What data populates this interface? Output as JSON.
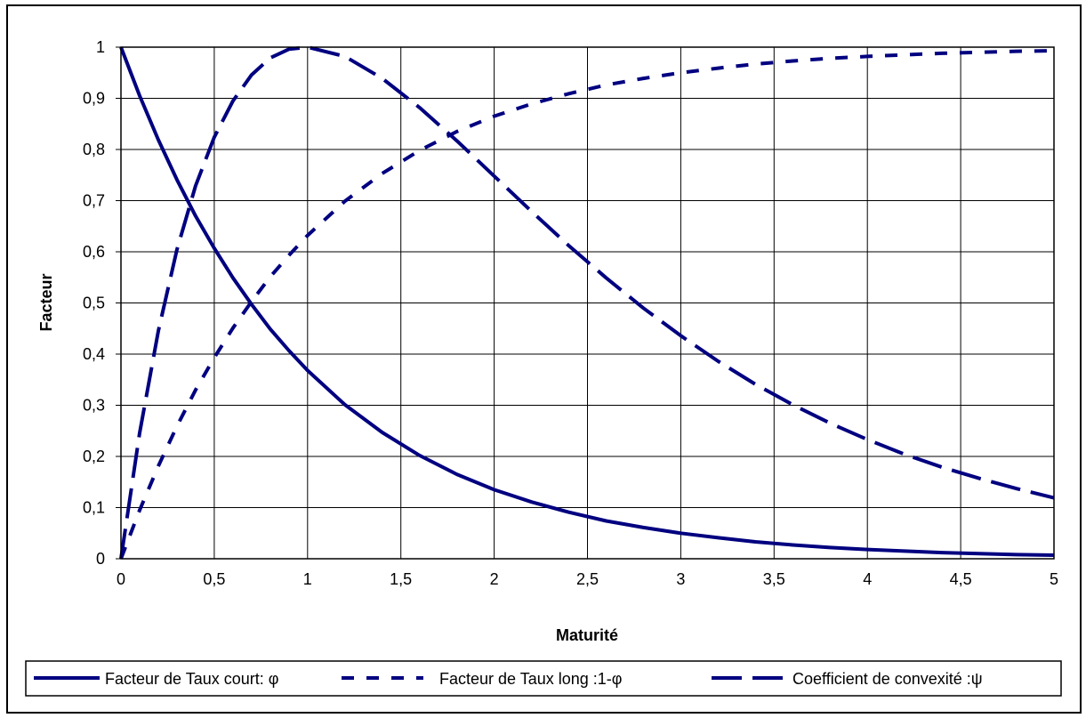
{
  "chart_data": {
    "type": "line",
    "title": "",
    "xlabel": "Maturité",
    "ylabel": "Facteur",
    "xlim": [
      0,
      5
    ],
    "ylim": [
      0,
      1
    ],
    "x_ticks": [
      "0",
      "0,5",
      "1",
      "1,5",
      "2",
      "2,5",
      "3",
      "3,5",
      "4",
      "4,5",
      "5"
    ],
    "y_ticks": [
      "0",
      "0,1",
      "0,2",
      "0,3",
      "0,4",
      "0,5",
      "0,6",
      "0,7",
      "0,8",
      "0,9",
      "1"
    ],
    "grid": true,
    "legend_position": "bottom",
    "line_color": "#000080",
    "x": [
      0,
      0.1,
      0.2,
      0.3,
      0.4,
      0.5,
      0.6,
      0.7,
      0.8,
      0.9,
      1.0,
      1.2,
      1.4,
      1.6,
      1.8,
      2.0,
      2.2,
      2.4,
      2.6,
      2.8,
      3.0,
      3.2,
      3.4,
      3.6,
      3.8,
      4.0,
      4.2,
      4.4,
      4.6,
      4.8,
      5.0
    ],
    "series": [
      {
        "name": "Facteur de Taux court: φ",
        "dash": "solid",
        "values": [
          1,
          0.905,
          0.819,
          0.741,
          0.67,
          0.607,
          0.549,
          0.497,
          0.449,
          0.407,
          0.368,
          0.301,
          0.247,
          0.202,
          0.165,
          0.135,
          0.111,
          0.091,
          0.074,
          0.061,
          0.05,
          0.041,
          0.033,
          0.027,
          0.022,
          0.018,
          0.015,
          0.012,
          0.01,
          0.008,
          0.007
        ]
      },
      {
        "name": "Facteur de Taux long :1-φ",
        "dash": "short",
        "values": [
          0,
          0.095,
          0.181,
          0.259,
          0.33,
          0.393,
          0.451,
          0.503,
          0.551,
          0.593,
          0.632,
          0.699,
          0.753,
          0.798,
          0.835,
          0.865,
          0.889,
          0.909,
          0.926,
          0.939,
          0.95,
          0.959,
          0.967,
          0.973,
          0.978,
          0.982,
          0.985,
          0.988,
          0.99,
          0.992,
          0.993
        ]
      },
      {
        "name": "Coefficient de convexité :ψ",
        "dash": "long",
        "values": [
          0,
          0.246,
          0.445,
          0.604,
          0.729,
          0.824,
          0.895,
          0.946,
          0.979,
          0.996,
          1.0,
          0.982,
          0.939,
          0.882,
          0.817,
          0.748,
          0.679,
          0.612,
          0.549,
          0.49,
          0.436,
          0.386,
          0.341,
          0.301,
          0.265,
          0.233,
          0.204,
          0.179,
          0.157,
          0.137,
          0.119
        ]
      }
    ]
  }
}
